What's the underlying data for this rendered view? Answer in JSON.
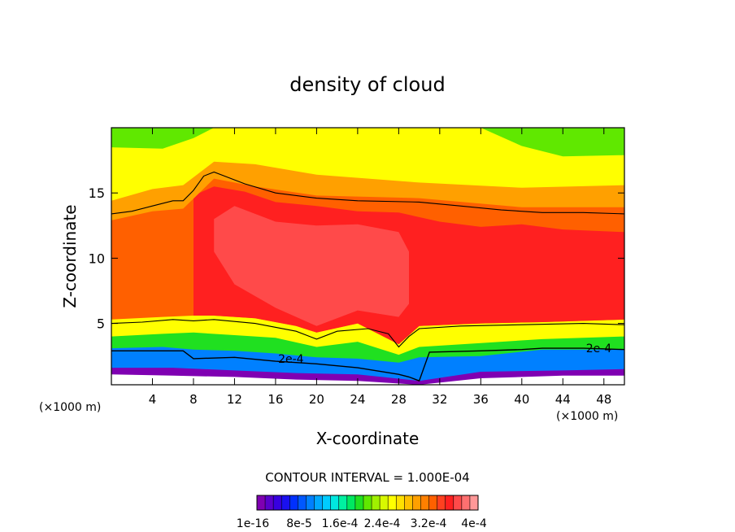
{
  "chart_data": {
    "type": "heatmap",
    "title": "density of cloud",
    "xlabel": "X-coordinate",
    "ylabel": "Z-coordinate",
    "x_unit": "(×1000 m)",
    "xlim": [
      0,
      50
    ],
    "ylim": [
      0.3,
      20
    ],
    "x_ticks": [
      4,
      8,
      12,
      16,
      20,
      24,
      28,
      32,
      36,
      40,
      44,
      48
    ],
    "y_ticks": [
      5,
      10,
      15
    ],
    "contour_interval_text": "CONTOUR INTERVAL = 1.000E-04",
    "contour_labels": [
      "2e-4",
      "2e-4"
    ],
    "colorbar": {
      "tick_labels": [
        "1e-16",
        "8e-5",
        "1.6e-4",
        "2.4e-4",
        "3.2e-4",
        "4e-4"
      ],
      "colors": [
        "#7f00b2",
        "#5a00cc",
        "#3800e0",
        "#1a10f0",
        "#0030ff",
        "#0058ff",
        "#0080ff",
        "#00a8ff",
        "#00ccff",
        "#00e8e0",
        "#00f0a0",
        "#00e860",
        "#20e020",
        "#60e800",
        "#a0f000",
        "#d8f800",
        "#ffff00",
        "#ffe000",
        "#ffc000",
        "#ffa000",
        "#ff8000",
        "#ff6000",
        "#ff4020",
        "#ff2020",
        "#ff4a4a",
        "#ff7070",
        "#ff9898"
      ]
    },
    "regions": {
      "top_z": 20.0,
      "green_bottom": [
        [
          0,
          18.5
        ],
        [
          5,
          18.4
        ],
        [
          8,
          19.2
        ],
        [
          10,
          20
        ],
        [
          14,
          20
        ],
        [
          24,
          20
        ],
        [
          36,
          20
        ],
        [
          40,
          18.6
        ],
        [
          44,
          17.8
        ],
        [
          50,
          17.9
        ]
      ],
      "yellow_bottom": [
        [
          0,
          14.4
        ],
        [
          4,
          15.3
        ],
        [
          7,
          15.6
        ],
        [
          10,
          17.4
        ],
        [
          14,
          17.2
        ],
        [
          20,
          16.4
        ],
        [
          30,
          15.8
        ],
        [
          40,
          15.4
        ],
        [
          50,
          15.6
        ]
      ],
      "orange_bottom": [
        [
          0,
          12.9
        ],
        [
          4,
          13.6
        ],
        [
          7,
          13.8
        ],
        [
          10,
          16.1
        ],
        [
          14,
          15.5
        ],
        [
          20,
          14.8
        ],
        [
          30,
          14.6
        ],
        [
          40,
          13.9
        ],
        [
          50,
          13.9
        ]
      ],
      "red_bottom": [
        [
          0,
          5.3
        ],
        [
          5,
          5.5
        ],
        [
          8,
          5.6
        ],
        [
          10,
          5.6
        ],
        [
          14,
          5.4
        ],
        [
          18,
          4.8
        ],
        [
          20,
          4.3
        ],
        [
          24,
          5.0
        ],
        [
          28,
          3.4
        ],
        [
          30,
          4.8
        ],
        [
          36,
          5.0
        ],
        [
          42,
          5.1
        ],
        [
          50,
          5.3
        ]
      ],
      "pink_top": [
        [
          8,
          14.8
        ],
        [
          10,
          15.5
        ],
        [
          13,
          15.1
        ],
        [
          16,
          14.3
        ],
        [
          20,
          14.0
        ],
        [
          24,
          13.6
        ],
        [
          28,
          13.5
        ],
        [
          32,
          12.8
        ],
        [
          36,
          12.4
        ],
        [
          40,
          12.6
        ],
        [
          44,
          12.2
        ],
        [
          50,
          12.0
        ]
      ],
      "yellow_low_bottom": [
        [
          0,
          4.0
        ],
        [
          5,
          4.2
        ],
        [
          8,
          4.3
        ],
        [
          12,
          4.1
        ],
        [
          16,
          3.9
        ],
        [
          20,
          3.2
        ],
        [
          24,
          3.6
        ],
        [
          28,
          2.6
        ],
        [
          30,
          3.2
        ],
        [
          36,
          3.5
        ],
        [
          42,
          3.8
        ],
        [
          50,
          4.0
        ]
      ],
      "green_low_bottom": [
        [
          0,
          3.1
        ],
        [
          5,
          3.2
        ],
        [
          8,
          3.0
        ],
        [
          12,
          2.9
        ],
        [
          16,
          2.7
        ],
        [
          20,
          2.4
        ],
        [
          24,
          2.3
        ],
        [
          28,
          2.0
        ],
        [
          30,
          2.4
        ],
        [
          36,
          2.5
        ],
        [
          42,
          3.0
        ],
        [
          50,
          3.0
        ]
      ],
      "blue_bottom": [
        [
          0,
          1.6
        ],
        [
          6,
          1.6
        ],
        [
          12,
          1.4
        ],
        [
          18,
          1.2
        ],
        [
          24,
          1.1
        ],
        [
          30,
          0.6
        ],
        [
          36,
          1.3
        ],
        [
          44,
          1.4
        ],
        [
          50,
          1.5
        ]
      ],
      "purple_bottom": [
        [
          0,
          1.1
        ],
        [
          6,
          1.0
        ],
        [
          12,
          0.9
        ],
        [
          18,
          0.7
        ],
        [
          24,
          0.6
        ],
        [
          30,
          0.3
        ],
        [
          36,
          0.8
        ],
        [
          44,
          1.0
        ],
        [
          50,
          1.0
        ]
      ],
      "core_top": [
        [
          10,
          13.0
        ],
        [
          12,
          14.0
        ],
        [
          16,
          12.8
        ],
        [
          20,
          12.5
        ],
        [
          24,
          12.6
        ],
        [
          28,
          12.0
        ],
        [
          29,
          10.5
        ]
      ],
      "core_bottom": [
        [
          29,
          6.5
        ],
        [
          28,
          5.5
        ],
        [
          24,
          6.0
        ],
        [
          20,
          4.8
        ],
        [
          16,
          6.2
        ],
        [
          12,
          8.0
        ],
        [
          10,
          10.5
        ]
      ],
      "contour_top": [
        [
          0,
          13.4
        ],
        [
          2,
          13.6
        ],
        [
          4,
          14.0
        ],
        [
          6,
          14.4
        ],
        [
          7,
          14.4
        ],
        [
          8,
          15.2
        ],
        [
          9,
          16.3
        ],
        [
          10,
          16.6
        ],
        [
          13,
          15.7
        ],
        [
          16,
          15.0
        ],
        [
          20,
          14.6
        ],
        [
          24,
          14.4
        ],
        [
          30,
          14.3
        ],
        [
          34,
          14.0
        ],
        [
          38,
          13.7
        ],
        [
          42,
          13.5
        ],
        [
          46,
          13.5
        ],
        [
          50,
          13.4
        ]
      ],
      "contour_5": [
        [
          0,
          5.0
        ],
        [
          3,
          5.1
        ],
        [
          6,
          5.3
        ],
        [
          8,
          5.2
        ],
        [
          10,
          5.3
        ],
        [
          14,
          5.0
        ],
        [
          18,
          4.4
        ],
        [
          20,
          3.8
        ],
        [
          22,
          4.4
        ],
        [
          25,
          4.6
        ],
        [
          27,
          4.2
        ],
        [
          28,
          3.2
        ],
        [
          29,
          4.0
        ],
        [
          30,
          4.6
        ],
        [
          34,
          4.8
        ],
        [
          40,
          4.9
        ],
        [
          46,
          5.0
        ],
        [
          50,
          4.9
        ]
      ],
      "contour_2e4": [
        [
          0,
          2.9
        ],
        [
          4,
          2.9
        ],
        [
          7,
          2.9
        ],
        [
          8,
          2.3
        ],
        [
          12,
          2.4
        ],
        [
          16,
          2.1
        ],
        [
          20,
          1.9
        ],
        [
          24,
          1.6
        ],
        [
          28,
          1.1
        ],
        [
          29,
          0.9
        ],
        [
          30,
          0.6
        ],
        [
          31,
          2.8
        ],
        [
          36,
          2.9
        ],
        [
          40,
          3.0
        ],
        [
          42,
          3.1
        ],
        [
          46,
          3.1
        ],
        [
          50,
          3.0
        ]
      ]
    }
  }
}
